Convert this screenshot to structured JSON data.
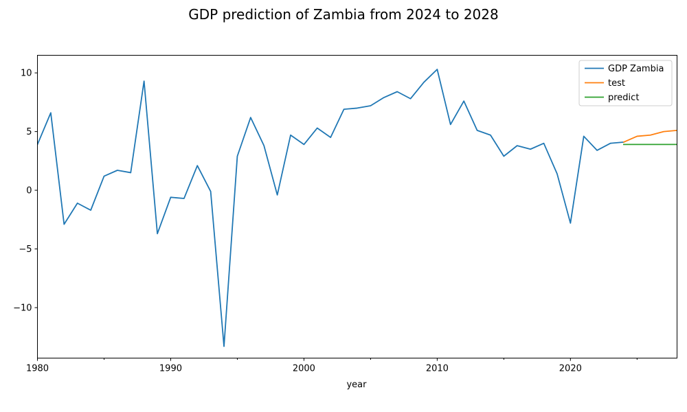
{
  "chart_data": {
    "type": "line",
    "title": "GDP prediction of Zambia from 2024 to 2028",
    "xlabel": "year",
    "ylabel": "",
    "xlim": [
      1980,
      2028
    ],
    "ylim": [
      -14.3,
      11.5
    ],
    "x_ticks": [
      1980,
      1990,
      2000,
      2010,
      2020
    ],
    "x_minor_ticks": [
      1985,
      1995,
      2005,
      2015,
      2025
    ],
    "y_ticks": [
      -10,
      -5,
      0,
      5,
      10
    ],
    "y_tick_labels": [
      "−10",
      "−5",
      "0",
      "5",
      "10"
    ],
    "legend_position": "top-right",
    "grid": false,
    "series": [
      {
        "name": "GDP Zambia",
        "color": "#1f77b4",
        "x": [
          1980,
          1981,
          1982,
          1983,
          1984,
          1985,
          1986,
          1987,
          1988,
          1989,
          1990,
          1991,
          1992,
          1993,
          1994,
          1995,
          1996,
          1997,
          1998,
          1999,
          2000,
          2001,
          2002,
          2003,
          2004,
          2005,
          2006,
          2007,
          2008,
          2009,
          2010,
          2011,
          2012,
          2013,
          2014,
          2015,
          2016,
          2017,
          2018,
          2019,
          2020,
          2021,
          2022,
          2023,
          2024
        ],
        "values": [
          3.9,
          6.6,
          -2.9,
          -1.1,
          -1.7,
          1.2,
          1.7,
          1.5,
          9.3,
          -3.7,
          -0.6,
          -0.7,
          2.1,
          -0.1,
          -13.3,
          2.9,
          6.2,
          3.8,
          -0.4,
          4.7,
          3.9,
          5.3,
          4.5,
          6.9,
          7.0,
          7.2,
          7.9,
          8.4,
          7.8,
          9.2,
          10.3,
          5.6,
          7.6,
          5.1,
          4.7,
          2.9,
          3.8,
          3.5,
          4.0,
          1.4,
          -2.8,
          4.6,
          3.4,
          4.0,
          4.1
        ]
      },
      {
        "name": "test",
        "color": "#ff7f0e",
        "x": [
          2024,
          2025,
          2026,
          2027,
          2028
        ],
        "values": [
          4.1,
          4.6,
          4.7,
          5.0,
          5.1
        ]
      },
      {
        "name": "predict",
        "color": "#2ca02c",
        "x": [
          2024,
          2025,
          2026,
          2027,
          2028
        ],
        "values": [
          3.9,
          3.9,
          3.9,
          3.9,
          3.9
        ]
      }
    ]
  }
}
